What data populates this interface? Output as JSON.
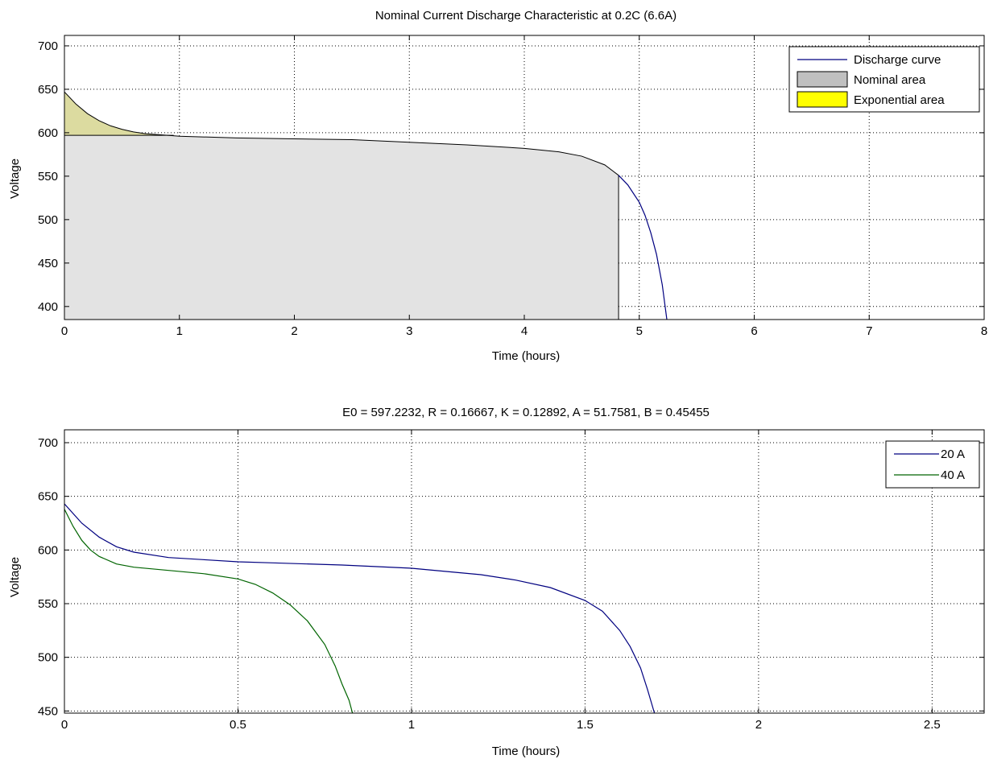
{
  "chart_data": [
    {
      "type": "area",
      "title": "Nominal Current Discharge Characteristic at 0.2C (6.6A)",
      "xlabel": "Time (hours)",
      "ylabel": "Voltage",
      "xlim": [
        0,
        8
      ],
      "ylim": [
        385,
        712
      ],
      "xticks": [
        0,
        1,
        2,
        3,
        4,
        5,
        6,
        7,
        8
      ],
      "yticks": [
        400,
        450,
        500,
        550,
        600,
        650,
        700
      ],
      "grid": true,
      "legend_position": "top-right",
      "series": [
        {
          "name": "Discharge curve",
          "type": "line",
          "color": "#000080",
          "x": [
            0,
            0.1,
            0.2,
            0.3,
            0.4,
            0.5,
            0.6,
            0.7,
            0.8,
            0.9,
            1.0,
            1.5,
            2.0,
            2.5,
            3.0,
            3.5,
            4.0,
            4.3,
            4.5,
            4.7,
            4.82,
            4.9,
            5.0,
            5.05,
            5.1,
            5.15,
            5.2,
            5.24
          ],
          "y": [
            647,
            633,
            622,
            614,
            608,
            604,
            601,
            599,
            598,
            597,
            596,
            594,
            593,
            592,
            589,
            586,
            582,
            578,
            573,
            563,
            551,
            540,
            520,
            505,
            485,
            460,
            425,
            385
          ]
        },
        {
          "name": "Nominal area",
          "type": "area",
          "color": "#c0c0c0",
          "x_end": 4.82,
          "y_end": 551
        },
        {
          "name": "Exponential area",
          "type": "area",
          "color": "#ffff00",
          "x_end": 0.95,
          "y_base": 597
        }
      ]
    },
    {
      "type": "line",
      "title": "E0 = 597.2232, R = 0.16667, K = 0.12892, A = 51.7581, B = 0.45455",
      "xlabel": "Time (hours)",
      "ylabel": "Voltage",
      "xlim": [
        0,
        2.65
      ],
      "ylim": [
        448,
        712
      ],
      "xticks": [
        0,
        0.5,
        1,
        1.5,
        2,
        2.5
      ],
      "yticks": [
        450,
        500,
        550,
        600,
        650,
        700
      ],
      "grid": true,
      "legend_position": "top-right",
      "series": [
        {
          "name": "20 A",
          "color": "#000080",
          "x": [
            0,
            0.05,
            0.1,
            0.15,
            0.2,
            0.3,
            0.4,
            0.5,
            0.6,
            0.8,
            1.0,
            1.2,
            1.3,
            1.4,
            1.5,
            1.55,
            1.6,
            1.63,
            1.66,
            1.68,
            1.7
          ],
          "y": [
            643,
            625,
            612,
            603,
            598,
            593,
            591,
            589,
            588,
            586,
            583,
            577,
            572,
            565,
            553,
            543,
            525,
            510,
            490,
            470,
            448
          ]
        },
        {
          "name": "40 A",
          "color": "#006400",
          "x": [
            0,
            0.025,
            0.05,
            0.075,
            0.1,
            0.15,
            0.2,
            0.3,
            0.4,
            0.5,
            0.55,
            0.6,
            0.65,
            0.7,
            0.75,
            0.78,
            0.8,
            0.82,
            0.83
          ],
          "y": [
            638,
            622,
            609,
            600,
            594,
            587,
            584,
            581,
            578,
            573,
            568,
            560,
            549,
            534,
            512,
            492,
            475,
            460,
            448
          ]
        }
      ]
    }
  ]
}
